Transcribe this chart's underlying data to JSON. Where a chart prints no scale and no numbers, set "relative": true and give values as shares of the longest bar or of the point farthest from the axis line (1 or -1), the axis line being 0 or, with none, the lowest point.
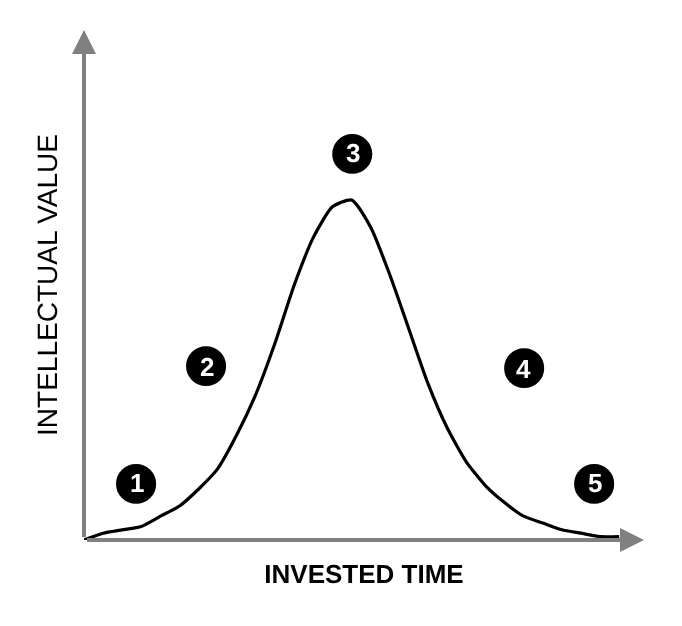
{
  "chart_data": {
    "type": "line",
    "relative": true,
    "xlabel": "INVESTED TIME",
    "ylabel": "INTELLECTUAL VALUE",
    "categories": [
      null,
      null,
      null,
      null,
      null,
      null,
      null,
      null,
      null,
      null,
      null,
      null,
      null,
      null,
      null,
      null,
      null,
      null,
      null,
      null,
      null,
      null,
      null,
      null,
      null,
      null,
      null,
      null,
      null
    ],
    "series": [
      {
        "color": "#000000",
        "values": [
          0,
          0.02,
          0.03,
          0.04,
          0.07,
          0.1,
          0.15,
          0.21,
          0.31,
          0.43,
          0.58,
          0.75,
          0.89,
          0.98,
          1,
          0.92,
          0.78,
          0.62,
          0.46,
          0.33,
          0.23,
          0.16,
          0.11,
          0.07,
          0.05,
          0.03,
          0.02,
          0.01,
          0.01
        ]
      }
    ],
    "annotations": [
      "1",
      "2",
      "3",
      "4",
      "5"
    ],
    "legend": false,
    "marker": "none",
    "line_style": "solid"
  }
}
